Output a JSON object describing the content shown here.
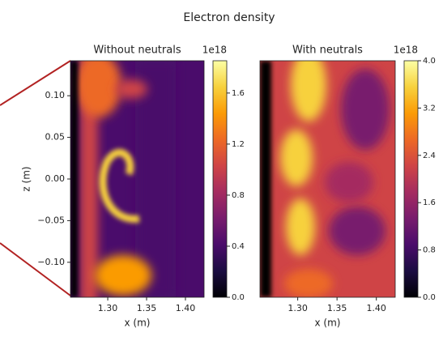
{
  "title": "Electron density",
  "chart_data": [
    {
      "type": "heatmap",
      "title": "Without neutrals",
      "xlabel": "x (m)",
      "ylabel": "z (m)",
      "colormap": "inferno",
      "xlim": [
        1.252,
        1.424
      ],
      "xticks": [
        {
          "value": 1.3,
          "label": "1.30"
        },
        {
          "value": 1.35,
          "label": "1.35"
        },
        {
          "value": 1.4,
          "label": "1.40"
        }
      ],
      "ylim": [
        -0.142,
        0.142
      ],
      "yticks": [
        {
          "value": 0.1,
          "label": "0.10"
        },
        {
          "value": 0.05,
          "label": "0.05"
        },
        {
          "value": 0,
          "label": "0.00"
        },
        {
          "value": -0.05,
          "label": "−0.05"
        },
        {
          "value": -0.1,
          "label": "−0.10"
        }
      ],
      "clim": [
        0,
        1.853
      ],
      "cticks": [
        {
          "value": 0,
          "label": "0.0"
        },
        0.4,
        0.8,
        1.2,
        1.6
      ],
      "colorbar_offset": "1e18"
    },
    {
      "type": "heatmap",
      "title": "With neutrals",
      "xlabel": "x (m)",
      "colormap": "inferno",
      "xlim": [
        1.252,
        1.424
      ],
      "xticks": [
        {
          "value": 1.3,
          "label": "1.30"
        },
        {
          "value": 1.35,
          "label": "1.35"
        },
        {
          "value": 1.4,
          "label": "1.40"
        }
      ],
      "ylim": [
        -0.142,
        0.142
      ],
      "clim": [
        0,
        4.0
      ],
      "cticks": [
        {
          "value": 0,
          "label": "0.0"
        },
        0.8,
        1.6,
        2.4,
        3.2,
        {
          "value": 4,
          "label": "4.0"
        }
      ],
      "colorbar_offset": "1e18"
    }
  ]
}
